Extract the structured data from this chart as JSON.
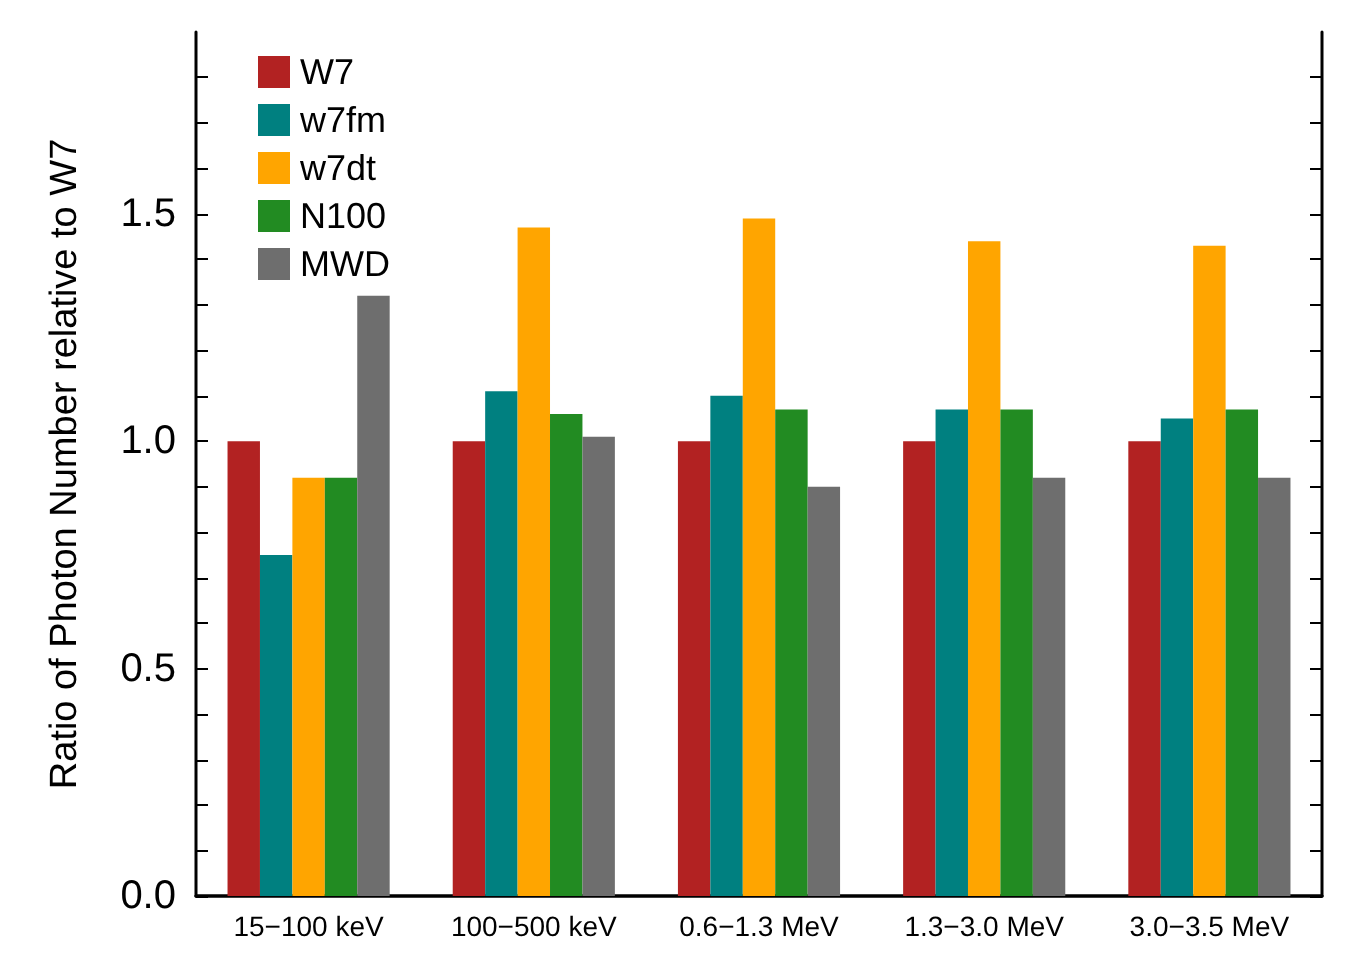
{
  "chart_data": {
    "type": "bar",
    "ylabel": "Ratio of Photon Number relative to W7",
    "categories": [
      "15−100 keV",
      "100−500 keV",
      "0.6−1.3 MeV",
      "1.3−3.0 MeV",
      "3.0−3.5 MeV"
    ],
    "series": [
      {
        "name": "W7",
        "color": "#b22222",
        "values": [
          1.0,
          1.0,
          1.0,
          1.0,
          1.0
        ]
      },
      {
        "name": "w7fm",
        "color": "#008080",
        "values": [
          0.75,
          1.11,
          1.1,
          1.07,
          1.05
        ]
      },
      {
        "name": "w7dt",
        "color": "#ffa500",
        "values": [
          0.92,
          1.47,
          1.49,
          1.44,
          1.43
        ]
      },
      {
        "name": "N100",
        "color": "#228b22",
        "values": [
          0.92,
          1.06,
          1.07,
          1.07,
          1.07
        ]
      },
      {
        "name": "MWD",
        "color": "#6e6e6e",
        "values": [
          1.32,
          1.01,
          0.9,
          0.92,
          0.92
        ]
      }
    ],
    "ylim": [
      0,
      1.9
    ],
    "yticks": [
      {
        "value": 0,
        "label": "0.0"
      },
      {
        "value": 0.1,
        "label": null
      },
      {
        "value": 0.2,
        "label": null
      },
      {
        "value": 0.3,
        "label": null
      },
      {
        "value": 0.4,
        "label": null
      },
      {
        "value": 0.5,
        "label": "0.5"
      },
      {
        "value": 0.6,
        "label": null
      },
      {
        "value": 0.7,
        "label": null
      },
      {
        "value": 0.8,
        "label": null
      },
      {
        "value": 0.9,
        "label": null
      },
      {
        "value": 1.0,
        "label": "1.0"
      },
      {
        "value": 1.1,
        "label": null
      },
      {
        "value": 1.2,
        "label": null
      },
      {
        "value": 1.3,
        "label": null
      },
      {
        "value": 1.4,
        "label": null
      },
      {
        "value": 1.5,
        "label": "1.5"
      },
      {
        "value": 1.6,
        "label": null
      },
      {
        "value": 1.7,
        "label": null
      },
      {
        "value": 1.8,
        "label": null
      }
    ],
    "grid": false,
    "legend": "top left"
  }
}
